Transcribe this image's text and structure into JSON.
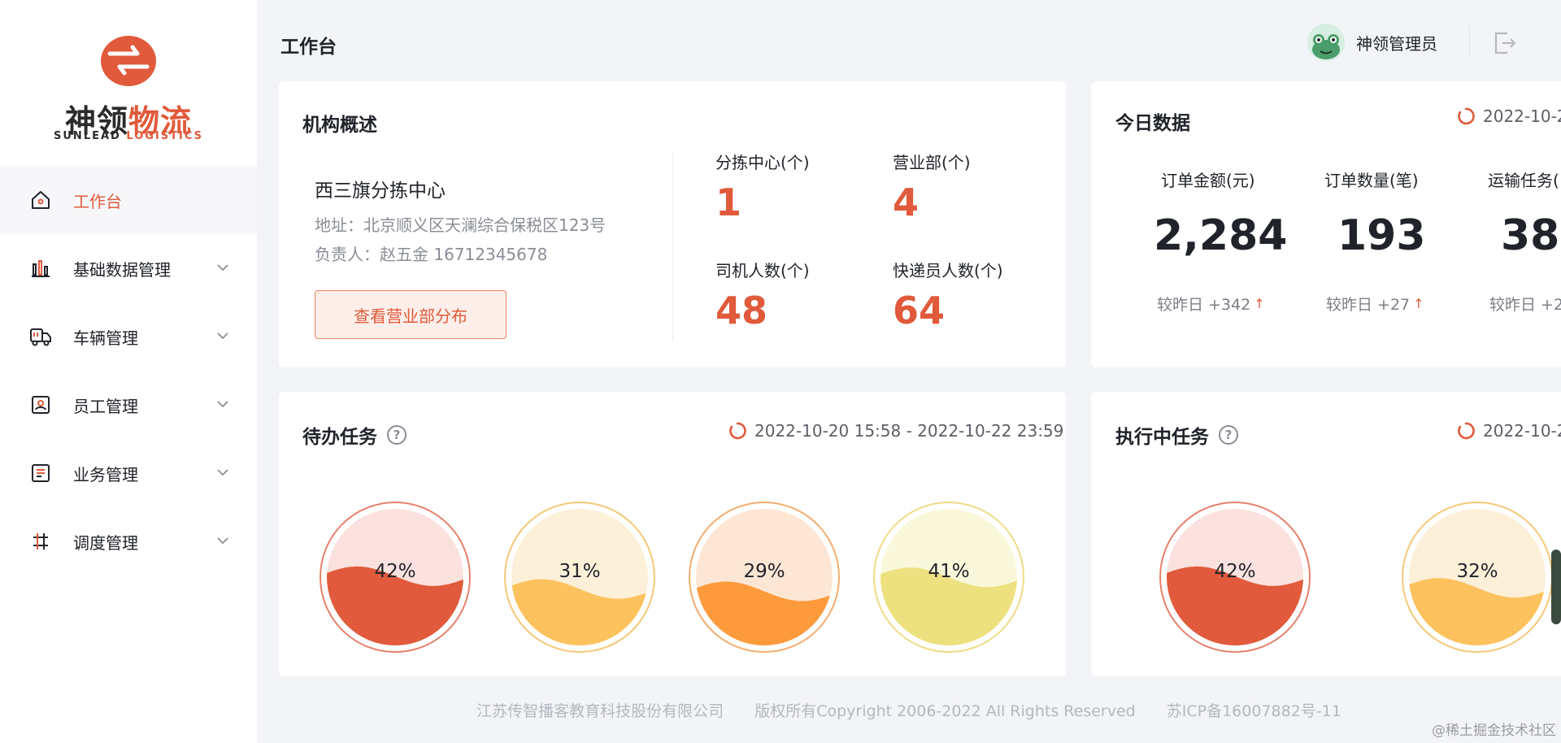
{
  "brand": {
    "logo_cn_a": "神领",
    "logo_cn_b": "物流",
    "logo_en_a": "SUNLEAD",
    "logo_en_b": "LOGISTICS",
    "primary_color": "#e05a3b"
  },
  "sidebar": {
    "items": [
      {
        "label": "工作台",
        "icon": "home-icon",
        "active": true
      },
      {
        "label": "基础数据管理",
        "icon": "bar-chart-icon"
      },
      {
        "label": "车辆管理",
        "icon": "truck-icon"
      },
      {
        "label": "员工管理",
        "icon": "id-card-icon"
      },
      {
        "label": "业务管理",
        "icon": "document-icon"
      },
      {
        "label": "调度管理",
        "icon": "dispatch-icon"
      }
    ]
  },
  "header": {
    "title": "工作台",
    "user_name": "神领管理员"
  },
  "org": {
    "title": "机构概述",
    "name": "西三旗分拣中心",
    "address": "地址：北京顺义区天澜综合保税区123号",
    "manager": "负责人：赵五金 16712345678",
    "button": "查看营业部分布",
    "stats": [
      {
        "label": "分拣中心(个)",
        "value": "1"
      },
      {
        "label": "营业部(个)",
        "value": "4"
      },
      {
        "label": "司机人数(个)",
        "value": "48"
      },
      {
        "label": "快递员人数(个)",
        "value": "64"
      }
    ]
  },
  "today": {
    "title": "今日数据",
    "date": "2022-10-2",
    "kpis": [
      {
        "label": "订单金额(元)",
        "value": "2,284",
        "delta": "较昨日 +342"
      },
      {
        "label": "订单数量(笔)",
        "value": "193",
        "delta": "较昨日 +27"
      },
      {
        "label": "运输任务(",
        "value": "38",
        "delta": "较昨日 +2"
      }
    ]
  },
  "pending": {
    "title": "待办任务",
    "date_range": "2022-10-20 15:58 - 2022-10-22 23:59",
    "gauges": [
      {
        "pct": "42%",
        "value": 0.42,
        "fill": "#e05a3b",
        "bg": "#fbe2de",
        "ring": "#e6816c"
      },
      {
        "pct": "31%",
        "value": 0.31,
        "fill": "#fdc25e",
        "bg": "#fdf0d9",
        "ring": "#f5c877"
      },
      {
        "pct": "29%",
        "value": 0.29,
        "fill": "#fd9b3c",
        "bg": "#fde6d4",
        "ring": "#f3ad6f"
      },
      {
        "pct": "41%",
        "value": 0.41,
        "fill": "#ede07e",
        "bg": "#f9f8da",
        "ring": "#eedc86"
      }
    ]
  },
  "running": {
    "title": "执行中任务",
    "date": "2022-10-2",
    "gauges": [
      {
        "pct": "42%",
        "value": 0.42,
        "fill": "#e05a3b",
        "bg": "#fbe2de",
        "ring": "#e6816c"
      },
      {
        "pct": "32%",
        "value": 0.32,
        "fill": "#fdc25e",
        "bg": "#fdf0d9",
        "ring": "#f5c877"
      }
    ]
  },
  "footer": {
    "company": "江苏传智播客教育科技股份有限公司",
    "copyright": "版权所有Copyright 2006-2022 All Rights Reserved",
    "icp": "苏ICP备16007882号-11"
  },
  "watermark": "@稀土掘金技术社区"
}
